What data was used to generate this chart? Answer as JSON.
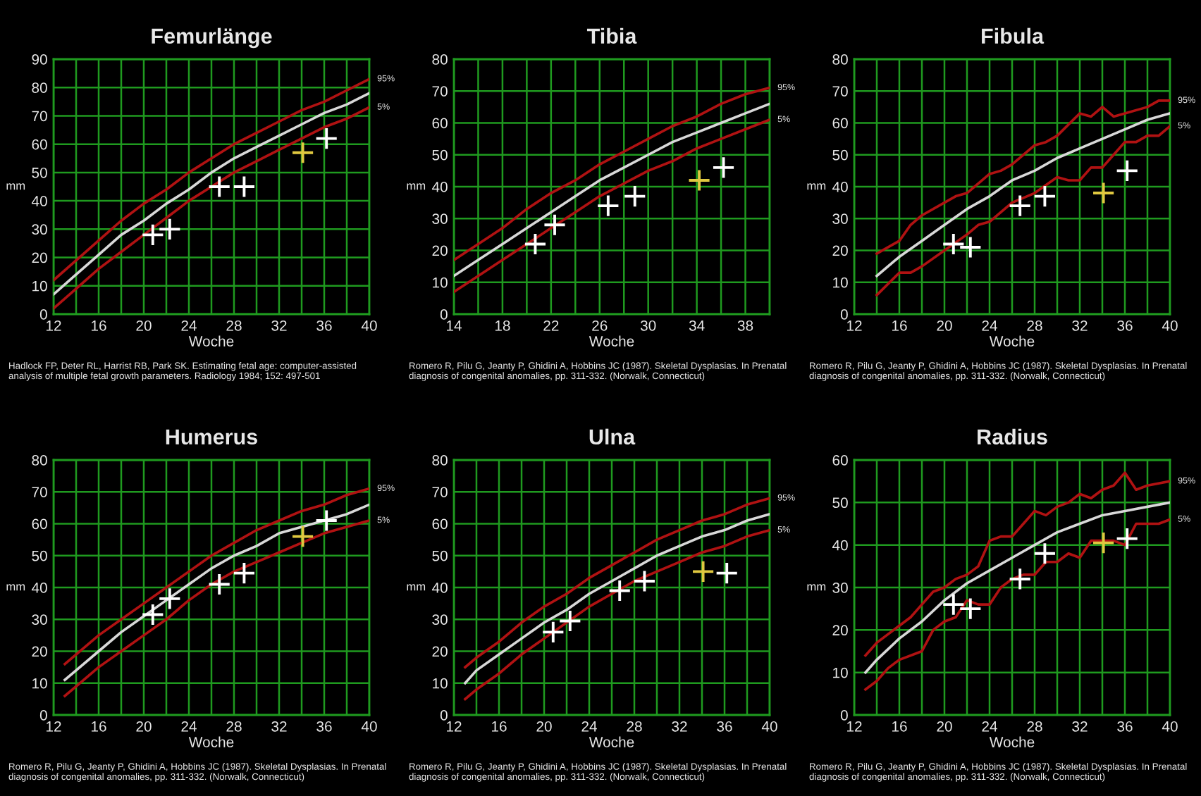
{
  "chart_data": [
    {
      "type": "line",
      "title": "Femurlänge",
      "xlabel": "Woche",
      "ylabel": "mm",
      "xlim": [
        12,
        40
      ],
      "ylim": [
        0,
        90
      ],
      "xticks": [
        12,
        {
          "value": 14,
          "label": null
        },
        16,
        {
          "value": 18,
          "label": null
        },
        20,
        {
          "value": 22,
          "label": null
        },
        24,
        {
          "value": 26,
          "label": null
        },
        28,
        {
          "value": 30,
          "label": null
        },
        32,
        {
          "value": 34,
          "label": null
        },
        36,
        {
          "value": 38,
          "label": null
        },
        40
      ],
      "yticks": [
        0,
        10,
        20,
        30,
        40,
        50,
        60,
        70,
        80,
        90
      ],
      "grid": true,
      "annotations": [
        "Hadlock FP, Deter RL, Harrist RB, Park SK. Estimating fetal age: computer-assisted analysis of multiple fetal growth parameters. Radiology 1984; 152: 497-501"
      ],
      "series": [
        {
          "name": "95%",
          "color": "#b01212",
          "x": [
            12,
            14,
            16,
            18,
            20,
            22,
            24,
            26,
            28,
            30,
            32,
            34,
            36,
            38,
            40
          ],
          "values": [
            12,
            19,
            26,
            33,
            39,
            44,
            50,
            55,
            60,
            64,
            68,
            72,
            75,
            79,
            83
          ]
        },
        {
          "color": "#d8d8d8",
          "x": [
            12,
            14,
            16,
            18,
            20,
            22,
            24,
            26,
            28,
            30,
            32,
            34,
            36,
            38,
            40
          ],
          "values": [
            7,
            14,
            21,
            28,
            33,
            39,
            44,
            50,
            55,
            59,
            63,
            67,
            71,
            74,
            78
          ]
        },
        {
          "name": "5%",
          "color": "#b01212",
          "x": [
            12,
            14,
            16,
            18,
            20,
            22,
            24,
            26,
            28,
            30,
            32,
            34,
            36,
            38,
            40
          ],
          "values": [
            2,
            9,
            16,
            22,
            28,
            34,
            40,
            45,
            50,
            54,
            58,
            62,
            66,
            69,
            73
          ]
        },
        {
          "type": "scatter",
          "marker": "cross",
          "color": "#ffffff",
          "x": [
            20.8,
            22.3,
            26.7,
            28.9,
            36.2
          ],
          "values": [
            28,
            30,
            45,
            45,
            62
          ]
        },
        {
          "type": "scatter",
          "marker": "cross",
          "color": "#e0c840",
          "x": [
            34.1
          ],
          "values": [
            57
          ]
        }
      ]
    },
    {
      "type": "line",
      "title": "Tibia",
      "xlabel": "Woche",
      "ylabel": "mm",
      "xlim": [
        14,
        40
      ],
      "ylim": [
        0,
        80
      ],
      "xticks": [
        14,
        {
          "value": 16,
          "label": null
        },
        18,
        {
          "value": 20,
          "label": null
        },
        22,
        {
          "value": 24,
          "label": null
        },
        26,
        {
          "value": 28,
          "label": null
        },
        30,
        {
          "value": 32,
          "label": null
        },
        34,
        {
          "value": 36,
          "label": null
        },
        38,
        {
          "value": 40,
          "label": null
        }
      ],
      "yticks": [
        0,
        10,
        20,
        30,
        40,
        50,
        60,
        70,
        80
      ],
      "grid": true,
      "annotations": [
        "Romero R, Pilu G, Jeanty P, Ghidini A, Hobbins JC (1987). Skeletal Dysplasias. In Prenatal diagnosis of congenital anomalies, pp. 311-332. (Norwalk, Connecticut)"
      ],
      "series": [
        {
          "name": "95%",
          "color": "#b01212",
          "x": [
            14,
            16,
            18,
            20,
            22,
            24,
            26,
            28,
            30,
            32,
            34,
            36,
            38,
            40
          ],
          "values": [
            17,
            22,
            27,
            33,
            38,
            42,
            47,
            51,
            55,
            59,
            62,
            66,
            69,
            71
          ]
        },
        {
          "color": "#d8d8d8",
          "x": [
            14,
            16,
            18,
            20,
            22,
            24,
            26,
            28,
            30,
            32,
            34,
            36,
            38,
            40
          ],
          "values": [
            12,
            17,
            22,
            27,
            32,
            37,
            42,
            46,
            50,
            54,
            57,
            60,
            63,
            66
          ]
        },
        {
          "name": "5%",
          "color": "#b01212",
          "x": [
            14,
            16,
            18,
            20,
            22,
            24,
            26,
            28,
            30,
            32,
            34,
            36,
            38,
            40
          ],
          "values": [
            7,
            12,
            17,
            22,
            27,
            32,
            37,
            41,
            45,
            48,
            52,
            55,
            58,
            61
          ]
        },
        {
          "type": "scatter",
          "marker": "cross",
          "color": "#ffffff",
          "x": [
            20.7,
            22.3,
            26.7,
            28.9,
            36.2
          ],
          "values": [
            22,
            28,
            34,
            37,
            46
          ]
        },
        {
          "type": "scatter",
          "marker": "cross",
          "color": "#e0c840",
          "x": [
            34.2
          ],
          "values": [
            42
          ]
        }
      ]
    },
    {
      "type": "line",
      "title": "Fibula",
      "xlabel": "Woche",
      "ylabel": "mm",
      "xlim": [
        12,
        40
      ],
      "ylim": [
        0,
        80
      ],
      "xticks": [
        12,
        {
          "value": 14,
          "label": null
        },
        16,
        {
          "value": 18,
          "label": null
        },
        20,
        {
          "value": 22,
          "label": null
        },
        24,
        {
          "value": 26,
          "label": null
        },
        28,
        {
          "value": 30,
          "label": null
        },
        32,
        {
          "value": 34,
          "label": null
        },
        36,
        {
          "value": 38,
          "label": null
        },
        40
      ],
      "yticks": [
        0,
        10,
        20,
        30,
        40,
        50,
        60,
        70,
        80
      ],
      "grid": true,
      "annotations": [
        "Romero R, Pilu G, Jeanty P, Ghidini A, Hobbins JC (1987). Skeletal Dysplasias. In Prenatal diagnosis of congenital anomalies, pp. 311-332. (Norwalk, Connecticut)"
      ],
      "series": [
        {
          "name": "95%",
          "color": "#b01212",
          "x": [
            14,
            16,
            17,
            18,
            20,
            21,
            22,
            24,
            25,
            26,
            28,
            29,
            30,
            32,
            33,
            34,
            35,
            36,
            38,
            39,
            40
          ],
          "values": [
            19,
            23,
            28,
            31,
            35,
            37,
            38,
            44,
            45,
            47,
            53,
            54,
            56,
            63,
            62,
            65,
            62,
            63,
            65,
            67,
            67
          ]
        },
        {
          "color": "#d8d8d8",
          "x": [
            14,
            16,
            18,
            20,
            22,
            24,
            26,
            28,
            30,
            32,
            34,
            36,
            38,
            40
          ],
          "values": [
            12,
            18,
            23,
            28,
            33,
            37,
            42,
            45,
            49,
            52,
            55,
            58,
            61,
            63
          ]
        },
        {
          "name": "5%",
          "color": "#b01212",
          "x": [
            14,
            16,
            17,
            18,
            20,
            22,
            23,
            24,
            26,
            28,
            30,
            31,
            32,
            33,
            34,
            35,
            36,
            37,
            38,
            39,
            40
          ],
          "values": [
            6,
            13,
            13,
            15,
            20,
            25,
            28,
            29,
            35,
            38,
            43,
            42,
            42,
            46,
            46,
            50,
            54,
            54,
            56,
            56,
            59
          ]
        },
        {
          "type": "scatter",
          "marker": "cross",
          "color": "#ffffff",
          "x": [
            20.8,
            22.3,
            26.7,
            28.9,
            36.2
          ],
          "values": [
            22,
            21,
            34,
            37,
            45
          ]
        },
        {
          "type": "scatter",
          "marker": "cross",
          "color": "#e0c840",
          "x": [
            34.1
          ],
          "values": [
            38
          ]
        }
      ]
    },
    {
      "type": "line",
      "title": "Humerus",
      "xlabel": "Woche",
      "ylabel": "mm",
      "xlim": [
        12,
        40
      ],
      "ylim": [
        0,
        80
      ],
      "xticks": [
        12,
        {
          "value": 14,
          "label": null
        },
        16,
        {
          "value": 18,
          "label": null
        },
        20,
        {
          "value": 22,
          "label": null
        },
        24,
        {
          "value": 26,
          "label": null
        },
        28,
        {
          "value": 30,
          "label": null
        },
        32,
        {
          "value": 34,
          "label": null
        },
        36,
        {
          "value": 38,
          "label": null
        },
        40
      ],
      "yticks": [
        0,
        10,
        20,
        30,
        40,
        50,
        60,
        70,
        80
      ],
      "grid": true,
      "annotations": [
        "Romero R, Pilu G, Jeanty P, Ghidini A, Hobbins JC (1987). Skeletal Dysplasias. In Prenatal diagnosis of congenital anomalies, pp. 311-332. (Norwalk, Connecticut)"
      ],
      "series": [
        {
          "name": "95%",
          "color": "#b01212",
          "x": [
            13,
            14,
            16,
            18,
            20,
            22,
            24,
            26,
            28,
            30,
            32,
            34,
            36,
            38,
            40
          ],
          "values": [
            16,
            19,
            25,
            30,
            35,
            40,
            45,
            50,
            54,
            58,
            61,
            64,
            66,
            69,
            71
          ]
        },
        {
          "color": "#d8d8d8",
          "x": [
            13,
            14,
            16,
            18,
            20,
            22,
            24,
            26,
            28,
            30,
            32,
            34,
            36,
            38,
            40
          ],
          "values": [
            11,
            14,
            20,
            26,
            31,
            36,
            41,
            46,
            50,
            53,
            57,
            59,
            61,
            63,
            66
          ]
        },
        {
          "name": "5%",
          "color": "#b01212",
          "x": [
            13,
            14,
            16,
            18,
            20,
            22,
            24,
            26,
            28,
            30,
            32,
            34,
            36,
            38,
            40
          ],
          "values": [
            6,
            9,
            15,
            20,
            25,
            30,
            36,
            41,
            45,
            48,
            51,
            54,
            57,
            59,
            61
          ]
        },
        {
          "type": "scatter",
          "marker": "cross",
          "color": "#ffffff",
          "x": [
            20.8,
            22.3,
            26.7,
            28.9,
            36.2
          ],
          "values": [
            31.5,
            36.5,
            41,
            44.5,
            61
          ]
        },
        {
          "type": "scatter",
          "marker": "cross",
          "color": "#e0c840",
          "x": [
            34.1
          ],
          "values": [
            56
          ]
        }
      ]
    },
    {
      "type": "line",
      "title": "Ulna",
      "xlabel": "Woche",
      "ylabel": "mm",
      "xlim": [
        12,
        40
      ],
      "ylim": [
        0,
        80
      ],
      "xticks": [
        12,
        {
          "value": 14,
          "label": null
        },
        16,
        {
          "value": 18,
          "label": null
        },
        20,
        {
          "value": 22,
          "label": null
        },
        24,
        {
          "value": 26,
          "label": null
        },
        28,
        {
          "value": 30,
          "label": null
        },
        32,
        {
          "value": 34,
          "label": null
        },
        36,
        {
          "value": 38,
          "label": null
        },
        40
      ],
      "yticks": [
        0,
        10,
        20,
        30,
        40,
        50,
        60,
        70,
        80
      ],
      "grid": true,
      "annotations": [
        "Romero R, Pilu G, Jeanty P, Ghidini A, Hobbins JC (1987). Skeletal Dysplasias. In Prenatal diagnosis of congenital anomalies, pp. 311-332. (Norwalk, Connecticut)"
      ],
      "series": [
        {
          "name": "95%",
          "color": "#b01212",
          "x": [
            13,
            14,
            16,
            18,
            20,
            22,
            24,
            26,
            28,
            30,
            32,
            34,
            36,
            38,
            40
          ],
          "values": [
            15,
            18,
            23,
            29,
            34,
            38,
            43,
            47,
            51,
            55,
            58,
            61,
            63,
            66,
            68
          ]
        },
        {
          "color": "#d8d8d8",
          "x": [
            13,
            14,
            16,
            18,
            20,
            22,
            24,
            26,
            28,
            30,
            32,
            34,
            36,
            38,
            40
          ],
          "values": [
            10,
            14,
            19,
            24,
            29,
            33,
            38,
            42,
            46,
            50,
            53,
            56,
            58,
            61,
            63
          ]
        },
        {
          "name": "5%",
          "color": "#b01212",
          "x": [
            13,
            14,
            16,
            18,
            20,
            22,
            24,
            26,
            28,
            30,
            32,
            34,
            36,
            38,
            40
          ],
          "values": [
            5,
            8,
            13,
            19,
            24,
            29,
            34,
            38,
            42,
            45,
            48,
            51,
            53,
            56,
            58
          ]
        },
        {
          "type": "scatter",
          "marker": "cross",
          "color": "#ffffff",
          "x": [
            20.8,
            22.3,
            26.7,
            28.9,
            36.2
          ],
          "values": [
            26,
            29.5,
            39,
            42,
            44.5
          ]
        },
        {
          "type": "scatter",
          "marker": "cross",
          "color": "#e0c840",
          "x": [
            34.1
          ],
          "values": [
            45
          ]
        }
      ]
    },
    {
      "type": "line",
      "title": "Radius",
      "xlabel": "Woche",
      "ylabel": "mm",
      "xlim": [
        12,
        40
      ],
      "ylim": [
        0,
        60
      ],
      "xticks": [
        12,
        {
          "value": 14,
          "label": null
        },
        16,
        {
          "value": 18,
          "label": null
        },
        20,
        {
          "value": 22,
          "label": null
        },
        24,
        {
          "value": 26,
          "label": null
        },
        28,
        {
          "value": 30,
          "label": null
        },
        32,
        {
          "value": 34,
          "label": null
        },
        36,
        {
          "value": 38,
          "label": null
        },
        40
      ],
      "yticks": [
        0,
        10,
        20,
        30,
        40,
        50,
        60
      ],
      "grid": true,
      "annotations": [
        "Romero R, Pilu G, Jeanty P, Ghidini A, Hobbins JC (1987). Skeletal Dysplasias. In Prenatal diagnosis of congenital anomalies, pp. 311-332. (Norwalk, Connecticut)"
      ],
      "series": [
        {
          "name": "95%",
          "color": "#b01212",
          "x": [
            13,
            14,
            16,
            17,
            18,
            19,
            20,
            21,
            22,
            23,
            24,
            25,
            26,
            27,
            28,
            29,
            30,
            31,
            32,
            33,
            34,
            35,
            36,
            37,
            38,
            40
          ],
          "values": [
            14,
            17,
            21,
            23,
            26,
            29,
            30,
            32,
            33,
            35,
            41,
            42,
            42,
            45,
            48,
            47,
            49,
            50,
            52,
            51,
            53,
            54,
            57,
            53,
            54,
            55
          ]
        },
        {
          "color": "#d8d8d8",
          "x": [
            13,
            14,
            16,
            18,
            20,
            22,
            24,
            26,
            28,
            30,
            32,
            34,
            36,
            38,
            40
          ],
          "values": [
            10,
            13,
            18,
            22,
            27,
            31,
            34,
            37,
            40,
            43,
            45,
            47,
            48,
            49,
            50
          ]
        },
        {
          "name": "5%",
          "color": "#b01212",
          "x": [
            13,
            14,
            15,
            16,
            18,
            19,
            20,
            21,
            22,
            23,
            24,
            25,
            26,
            27,
            28,
            29,
            30,
            31,
            32,
            33,
            34,
            35,
            36,
            37,
            38,
            39,
            40
          ],
          "values": [
            6,
            8,
            11,
            13,
            15,
            20,
            22,
            23,
            27,
            26,
            26,
            30,
            32,
            33,
            33,
            36,
            36,
            38,
            37,
            41,
            41,
            41,
            40,
            45,
            45,
            45,
            46
          ]
        },
        {
          "type": "scatter",
          "marker": "cross",
          "color": "#ffffff",
          "x": [
            20.8,
            22.3,
            26.7,
            28.9,
            36.2
          ],
          "values": [
            26,
            25,
            32,
            38,
            41.5
          ]
        },
        {
          "type": "scatter",
          "marker": "cross",
          "color": "#e0c840",
          "x": [
            34.1
          ],
          "values": [
            40.5
          ]
        }
      ]
    }
  ]
}
